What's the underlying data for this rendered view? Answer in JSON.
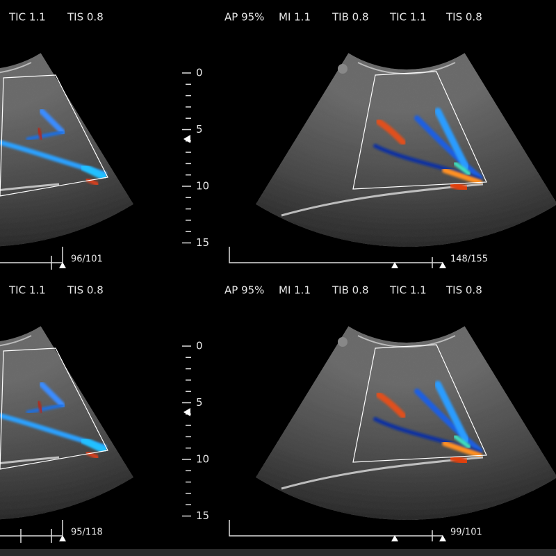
{
  "panels": [
    {
      "header": [
        "TIC 1.1",
        "TIS 0.8"
      ],
      "frame": "96/101"
    },
    {
      "header": [
        "AP 95%",
        "MI 1.1",
        "TIB 0.8",
        "TIC 1.1",
        "TIS 0.8"
      ],
      "depth_scale": [
        "0",
        "5",
        "10",
        "15"
      ],
      "frame": "148/155"
    },
    {
      "header": [
        "TIC 1.1",
        "TIS 0.8"
      ],
      "frame": "95/118"
    },
    {
      "header": [
        "AP 95%",
        "MI 1.1",
        "TIB 0.8",
        "TIC 1.1",
        "TIS 0.8"
      ],
      "depth_scale": [
        "0",
        "5",
        "10",
        "15"
      ],
      "frame": "99/101"
    }
  ]
}
